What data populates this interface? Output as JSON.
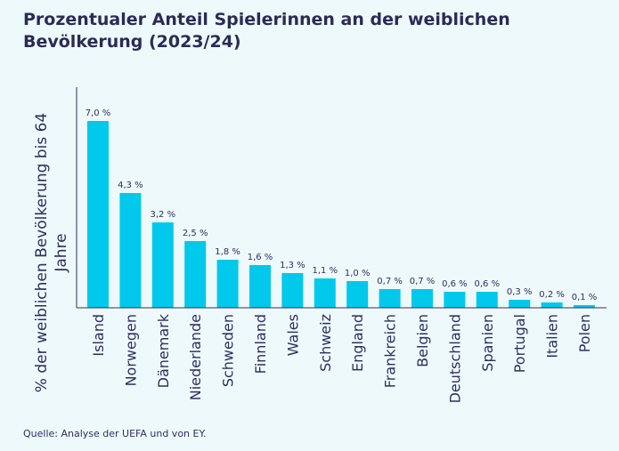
{
  "header": {
    "title": "Prozentualer Anteil Spielerinnen an der weiblichen Bevölkerung (2023/24)"
  },
  "footer": {
    "source": "Quelle: Analyse der UEFA und von EY."
  },
  "colors": {
    "background": "#eef9fc",
    "bar": "#00c9ec",
    "text": "#2e2e60",
    "axis": "#2e2e60"
  },
  "chart_data": {
    "type": "bar",
    "title": "Prozentualer Anteil Spielerinnen an der weiblichen Bevölkerung (2023/24)",
    "ylabel": "% der weiblichen Bevölkerung bis 64 Jahre",
    "xlabel": "",
    "categories": [
      "Island",
      "Norwegen",
      "Dänemark",
      "Niederlande",
      "Schweden",
      "Finnland",
      "Wales",
      "Schweiz",
      "England",
      "Frankreich",
      "Belgien",
      "Deutschland",
      "Spanien",
      "Portugal",
      "Italien",
      "Polen"
    ],
    "values": [
      7.0,
      4.3,
      3.2,
      2.5,
      1.8,
      1.6,
      1.3,
      1.1,
      1.0,
      0.7,
      0.7,
      0.6,
      0.6,
      0.3,
      0.2,
      0.1
    ],
    "value_labels": [
      "7,0 %",
      "4,3 %",
      "3,2 %",
      "2,5 %",
      "1,8 %",
      "1,6 %",
      "1,3 %",
      "1,1 %",
      "1,0 %",
      "0,7 %",
      "0,7 %",
      "0,6 %",
      "0,6 %",
      "0,3 %",
      "0,2 %",
      "0,1 %"
    ],
    "ylim": [
      0,
      7.0
    ],
    "grid": false,
    "legend": "none"
  }
}
